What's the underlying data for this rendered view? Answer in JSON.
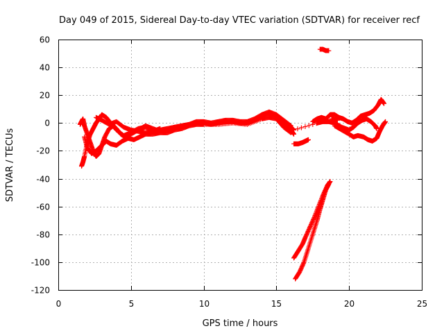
{
  "chart_data": {
    "type": "scatter",
    "title": "Day 049 of 2015, Sidereal Day-to-day VTEC variation (SDTVAR) for receiver recf",
    "xlabel": "GPS time / hours",
    "ylabel": "SDTVAR / TECUs",
    "xlim": [
      0,
      25
    ],
    "ylim": [
      -120,
      60
    ],
    "xticks": [
      "0",
      "5",
      "10",
      "15",
      "20",
      "25"
    ],
    "yticks": [
      "-120",
      "-100",
      "-80",
      "-60",
      "-40",
      "-20",
      "0",
      "20",
      "40",
      "60"
    ],
    "grid": true,
    "marker": "plus",
    "color": "#ff0000",
    "series": [
      {
        "values": [
          [
            1.5,
            -1
          ],
          [
            1.6,
            1
          ],
          [
            1.7,
            3
          ],
          [
            1.8,
            -2
          ],
          [
            2.0,
            -8
          ],
          [
            2.2,
            -14
          ],
          [
            2.4,
            -20
          ],
          [
            2.5,
            -22
          ],
          [
            2.6,
            -24
          ],
          [
            2.8,
            -22
          ],
          [
            3.0,
            -16
          ],
          [
            3.2,
            -10
          ],
          [
            3.5,
            -4
          ],
          [
            3.8,
            -2
          ],
          [
            4.0,
            -5
          ],
          [
            4.5,
            -9
          ],
          [
            5.0,
            -7
          ],
          [
            5.5,
            -4
          ],
          [
            6.0,
            -3
          ],
          [
            6.5,
            -5
          ],
          [
            7.0,
            -5
          ],
          [
            7.5,
            -4
          ],
          [
            8.0,
            -3
          ],
          [
            8.5,
            -2
          ],
          [
            9.0,
            -1
          ],
          [
            9.5,
            0
          ],
          [
            10.0,
            0
          ],
          [
            10.5,
            -1
          ],
          [
            11.0,
            0
          ],
          [
            11.5,
            1
          ],
          [
            12.0,
            1
          ],
          [
            12.5,
            0
          ],
          [
            13.0,
            0
          ],
          [
            13.5,
            2
          ],
          [
            14.0,
            5
          ],
          [
            14.5,
            7
          ],
          [
            15.0,
            5
          ],
          [
            15.5,
            0
          ],
          [
            16.0,
            -5
          ],
          [
            16.2,
            -8
          ]
        ]
      },
      {
        "values": [
          [
            1.6,
            -31
          ],
          [
            1.7,
            -28
          ],
          [
            1.8,
            -24
          ],
          [
            2.0,
            -14
          ],
          [
            2.2,
            -8
          ],
          [
            2.4,
            -4
          ],
          [
            2.6,
            0
          ],
          [
            2.8,
            3
          ],
          [
            3.0,
            6
          ],
          [
            3.3,
            4
          ],
          [
            3.6,
            0
          ],
          [
            4.0,
            -4
          ],
          [
            4.3,
            -8
          ],
          [
            4.6,
            -10
          ],
          [
            5.0,
            -8
          ],
          [
            5.5,
            -5
          ],
          [
            6.0,
            -2
          ],
          [
            6.5,
            -4
          ],
          [
            7.0,
            -6
          ],
          [
            7.5,
            -5
          ],
          [
            8.0,
            -3
          ],
          [
            8.5,
            -2
          ],
          [
            9.0,
            -1
          ],
          [
            9.5,
            1
          ],
          [
            10.0,
            1
          ],
          [
            10.5,
            0
          ],
          [
            11.0,
            1
          ],
          [
            11.5,
            2
          ],
          [
            12.0,
            2
          ],
          [
            12.5,
            1
          ],
          [
            13.0,
            1
          ],
          [
            13.5,
            3
          ],
          [
            14.0,
            6
          ],
          [
            14.5,
            8
          ],
          [
            15.0,
            6
          ],
          [
            15.5,
            2
          ],
          [
            16.0,
            -2
          ]
        ]
      },
      {
        "values": [
          [
            1.8,
            -10
          ],
          [
            2.0,
            -18
          ],
          [
            2.3,
            -22
          ],
          [
            2.6,
            -20
          ],
          [
            3.0,
            -16
          ],
          [
            3.3,
            -13
          ],
          [
            3.6,
            -15
          ],
          [
            4.0,
            -16
          ],
          [
            4.4,
            -13
          ],
          [
            4.8,
            -11
          ],
          [
            5.2,
            -12
          ],
          [
            5.6,
            -10
          ],
          [
            6.0,
            -8
          ],
          [
            6.5,
            -8
          ],
          [
            7.0,
            -7
          ],
          [
            7.5,
            -7
          ],
          [
            8.0,
            -5
          ],
          [
            8.5,
            -4
          ],
          [
            9.0,
            -2
          ],
          [
            9.5,
            -1
          ],
          [
            10.0,
            -1
          ],
          [
            11.0,
            -1
          ],
          [
            12.0,
            0
          ],
          [
            13.0,
            -1
          ],
          [
            14.0,
            3
          ],
          [
            14.5,
            4
          ],
          [
            15.0,
            3
          ],
          [
            15.5,
            -3
          ],
          [
            16.0,
            -7
          ]
        ]
      },
      {
        "values": [
          [
            2.6,
            4
          ],
          [
            3.0,
            2
          ],
          [
            3.5,
            -1
          ],
          [
            4.0,
            1
          ],
          [
            4.5,
            -3
          ],
          [
            5.0,
            -5
          ],
          [
            5.5,
            -6
          ],
          [
            6.0,
            -7
          ],
          [
            6.5,
            -6
          ],
          [
            7.0,
            -4
          ]
        ]
      },
      {
        "values": [
          [
            16.2,
            -15
          ],
          [
            16.5,
            -15
          ],
          [
            16.8,
            -14
          ],
          [
            17.0,
            -13
          ],
          [
            17.2,
            -12
          ]
        ]
      },
      {
        "values": [
          [
            16.2,
            -97
          ],
          [
            16.5,
            -92
          ],
          [
            16.8,
            -87
          ],
          [
            17.0,
            -82
          ],
          [
            17.3,
            -75
          ],
          [
            17.6,
            -68
          ],
          [
            17.9,
            -60
          ],
          [
            18.2,
            -52
          ],
          [
            18.5,
            -45
          ],
          [
            18.7,
            -42
          ]
        ]
      },
      {
        "values": [
          [
            16.3,
            -112
          ],
          [
            16.6,
            -107
          ],
          [
            16.9,
            -100
          ],
          [
            17.2,
            -90
          ],
          [
            17.5,
            -80
          ],
          [
            17.8,
            -70
          ],
          [
            18.0,
            -62
          ],
          [
            18.2,
            -55
          ],
          [
            18.4,
            -48
          ],
          [
            18.6,
            -44
          ]
        ]
      },
      {
        "values": [
          [
            18.0,
            53
          ],
          [
            18.2,
            53
          ],
          [
            18.4,
            52
          ],
          [
            18.6,
            52
          ]
        ]
      },
      {
        "values": [
          [
            17.5,
            1
          ],
          [
            17.8,
            3
          ],
          [
            18.1,
            4
          ],
          [
            18.4,
            3
          ],
          [
            18.7,
            6
          ],
          [
            19.0,
            6
          ],
          [
            19.3,
            4
          ],
          [
            19.6,
            3
          ],
          [
            19.9,
            1
          ],
          [
            20.2,
            0
          ],
          [
            20.5,
            2
          ],
          [
            20.8,
            5
          ],
          [
            21.1,
            6
          ],
          [
            21.4,
            7
          ],
          [
            21.7,
            9
          ],
          [
            22.0,
            13
          ],
          [
            22.2,
            17
          ],
          [
            22.4,
            14
          ]
        ]
      },
      {
        "values": [
          [
            17.8,
            0
          ],
          [
            18.2,
            1
          ],
          [
            18.6,
            1
          ],
          [
            19.0,
            0
          ],
          [
            19.5,
            -3
          ],
          [
            20.0,
            -5
          ],
          [
            20.3,
            -3
          ],
          [
            20.6,
            0
          ],
          [
            20.9,
            2
          ],
          [
            21.2,
            3
          ],
          [
            21.5,
            1
          ],
          [
            21.8,
            -2
          ],
          [
            21.9,
            -4
          ]
        ]
      },
      {
        "values": [
          [
            19.0,
            -2
          ],
          [
            19.5,
            -5
          ],
          [
            20.0,
            -8
          ],
          [
            20.3,
            -10
          ],
          [
            20.6,
            -9
          ],
          [
            21.0,
            -10
          ],
          [
            21.3,
            -12
          ],
          [
            21.6,
            -13
          ],
          [
            21.9,
            -11
          ],
          [
            22.1,
            -6
          ],
          [
            22.3,
            -2
          ],
          [
            22.5,
            1
          ]
        ]
      },
      {
        "values": [
          [
            16.0,
            -3
          ],
          [
            16.2,
            -5
          ],
          [
            18.8,
            3
          ],
          [
            19.2,
            2
          ]
        ]
      }
    ]
  }
}
